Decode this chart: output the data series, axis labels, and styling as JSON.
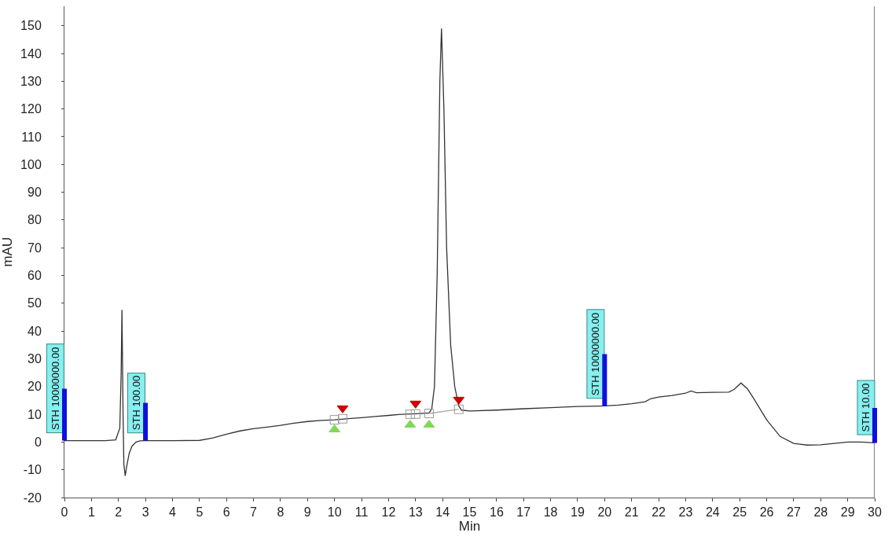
{
  "chart_data": {
    "type": "line",
    "xlabel": "Min",
    "ylabel": "mAU",
    "xlim": [
      0,
      30
    ],
    "ylim": [
      -20,
      157
    ],
    "xticks": [
      0,
      1,
      2,
      3,
      4,
      5,
      6,
      7,
      8,
      9,
      10,
      11,
      12,
      13,
      14,
      15,
      16,
      17,
      18,
      19,
      20,
      21,
      22,
      23,
      24,
      25,
      26,
      27,
      28,
      29,
      30
    ],
    "yticks": [
      -20,
      -10,
      0,
      10,
      20,
      30,
      40,
      50,
      60,
      70,
      80,
      90,
      100,
      110,
      120,
      130,
      140,
      150
    ],
    "grid": false,
    "marker": "none",
    "line_style": "solid",
    "series": [
      {
        "color": "#333333",
        "x": [
          0,
          0.5,
          1,
          1.5,
          1.9,
          2.05,
          2.1,
          2.13,
          2.17,
          2.2,
          2.25,
          2.3,
          2.4,
          2.5,
          2.65,
          2.8,
          3,
          4,
          5,
          5.5,
          6,
          6.5,
          7,
          7.5,
          8,
          8.5,
          9,
          9.5,
          10,
          10.5,
          11,
          11.5,
          12,
          12.5,
          13,
          13.5,
          13.6,
          13.7,
          13.8,
          13.9,
          13.96,
          14.05,
          14.15,
          14.3,
          14.45,
          14.6,
          14.7,
          15,
          16,
          17,
          18,
          19,
          20,
          20.5,
          21,
          21.5,
          21.7,
          22,
          22.5,
          23,
          23.2,
          23.4,
          24,
          24.6,
          24.8,
          25.05,
          25.3,
          25.5,
          26,
          26.5,
          27,
          27.5,
          28,
          28.5,
          29,
          29.5,
          30
        ],
        "values": [
          0.5,
          0.5,
          0.5,
          0.5,
          0.8,
          5,
          25,
          47.6,
          10,
          -8,
          -12.2,
          -9,
          -4,
          -1.5,
          0,
          0.4,
          0.5,
          0.5,
          0.6,
          1.5,
          2.8,
          4,
          4.8,
          5.4,
          6,
          6.8,
          7.4,
          7.8,
          8,
          8.4,
          8.8,
          9.2,
          9.6,
          10,
          10.2,
          10.5,
          12,
          20,
          60,
          130,
          149,
          120,
          70,
          35,
          20,
          13,
          11.5,
          11.2,
          11.5,
          12,
          12.4,
          12.8,
          13,
          13.3,
          13.8,
          14.5,
          15.6,
          16.2,
          16.8,
          17.6,
          18.4,
          17.8,
          17.9,
          18,
          19,
          21.3,
          19,
          16,
          8,
          2,
          -0.5,
          -1.1,
          -1,
          -0.5,
          0,
          0,
          -0.3
        ]
      },
      {
        "color": "#aaaaaa",
        "x": [
          13.5,
          14.6
        ],
        "values": [
          10.3,
          11.8
        ]
      },
      {
        "type": "scatter",
        "color": "#999999",
        "marker": "square",
        "x": [
          10.0,
          10.3,
          12.8,
          13.0,
          13.5,
          14.6
        ],
        "values": [
          8,
          8.4,
          10,
          10.1,
          10.3,
          11.8
        ]
      },
      {
        "type": "scatter",
        "color": "#7ed957",
        "marker": "triangle",
        "x": [
          10.0,
          12.8,
          13.5
        ],
        "values": [
          4.5,
          6.2,
          6.2
        ]
      },
      {
        "type": "scatter",
        "color": "#cc0000",
        "marker": "triangle-down",
        "x": [
          10.3,
          13.0,
          14.6
        ],
        "values": [
          12.2,
          13.9,
          15.3
        ]
      }
    ],
    "ref_lines": [
      {
        "axis": "x",
        "value": 30,
        "color": "#555555"
      }
    ],
    "annotations": [
      {
        "text": "STH 10000000.00",
        "x": 0,
        "y": 0.5
      },
      {
        "text": "STH 100.00",
        "x": 3,
        "y": 0.5
      },
      {
        "text": "STH 10000000.00",
        "x": 20,
        "y": 13
      },
      {
        "text": "STH 10.00",
        "x": 30,
        "y": -0.3
      }
    ]
  }
}
